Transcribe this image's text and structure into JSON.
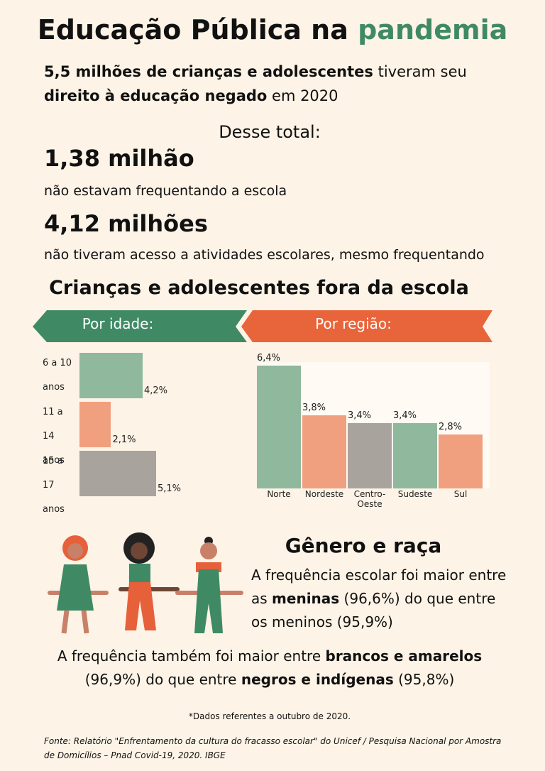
{
  "title": {
    "text": "Educação Pública na",
    "highlight": "pandemia"
  },
  "subtitle": [
    {
      "text": "5,5 milhões de crianças e adolescentes",
      "bold": true
    },
    {
      "text": " tiveram seu ",
      "bold": false
    },
    {
      "text": "direito à educação negado",
      "bold": true
    },
    {
      "text": " em 2020",
      "bold": false
    }
  ],
  "total_label": "Desse total:",
  "stats": [
    {
      "number": "1,38 milhão",
      "text": "não estavam frequentando a escola"
    },
    {
      "number": "4,12 milhões",
      "text": "não tiveram acesso a atividades escolares, mesmo frequentando"
    }
  ],
  "section_title": "Crianças e adolescentes fora da escola",
  "chart_data": [
    {
      "type": "hbar",
      "title": "Por idade:",
      "categories": [
        "6 a 10 anos",
        "11 a 14 anos",
        "15 a 17 anos"
      ],
      "values": [
        4.2,
        2.1,
        5.1
      ],
      "value_labels": [
        "4,2%",
        "2,1%",
        "5,1%"
      ],
      "colors": [
        "#8fb89c",
        "#f0a07f",
        "#a8a39d"
      ],
      "header_color": "#3f8a65"
    },
    {
      "type": "bar",
      "title": "Por região:",
      "categories": [
        "Norte",
        "Nordeste",
        "Centro-Oeste",
        "Sudeste",
        "Sul"
      ],
      "values": [
        6.4,
        3.8,
        3.4,
        3.4,
        2.8
      ],
      "value_labels": [
        "6,4%",
        "3,8%",
        "3,4%",
        "3,4%",
        "2,8%"
      ],
      "colors": [
        "#8fb89c",
        "#f0a07f",
        "#a8a39d",
        "#8fb89c",
        "#f0a07f"
      ],
      "header_color": "#e8643a"
    }
  ],
  "gender": {
    "title": "Gênero e raça",
    "paragraph": [
      {
        "text": "A frequência escolar foi maior entre as ",
        "bold": false
      },
      {
        "text": "meninas",
        "bold": true
      },
      {
        "text": " (96,6%) do que entre os meninos (95,9%)",
        "bold": false
      }
    ],
    "race": [
      {
        "text": "A frequência também foi maior entre ",
        "bold": false
      },
      {
        "text": "brancos e amarelos",
        "bold": true
      },
      {
        "text": " (96,9%) do que entre ",
        "bold": false
      },
      {
        "text": "negros e indígenas",
        "bold": true
      },
      {
        "text": " (95,8%)",
        "bold": false
      }
    ]
  },
  "footnote": "*Dados referentes a outubro de 2020.",
  "source": "Fonte: Relatório \"Enfrentamento da cultura do fracasso escolar\" do Unicef / Pesquisa Nacional por Amostra de Domicílios – Pnad Covid-19, 2020. IBGE"
}
